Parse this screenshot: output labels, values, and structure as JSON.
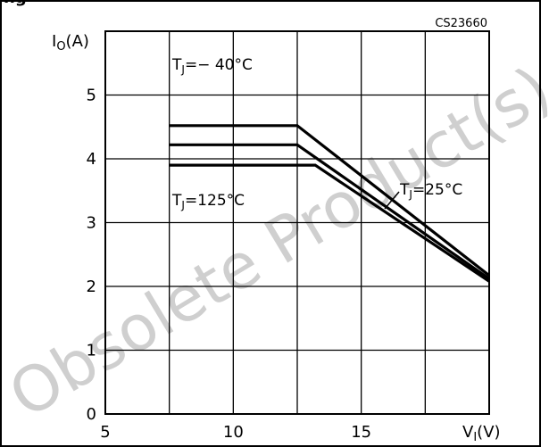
{
  "header_partial": "ng",
  "watermark": "Obsolete Product(s) - O",
  "chart_data": {
    "type": "line",
    "code": "CS23660",
    "ylabel": {
      "main": "I",
      "sub": "O",
      "unit": "(A)"
    },
    "xlabel": {
      "main": "V",
      "sub": "I",
      "unit": "(V)"
    },
    "xlim": [
      5,
      20
    ],
    "ylim": [
      0,
      6
    ],
    "xticks": [
      5,
      10,
      15
    ],
    "yticks": [
      0,
      1,
      2,
      3,
      4,
      5
    ],
    "grid": true,
    "series": [
      {
        "name": "T_J = -40°C",
        "x": [
          7.5,
          12.5,
          20
        ],
        "y": [
          4.52,
          4.52,
          2.17
        ]
      },
      {
        "name": "T_J = 25°C",
        "x": [
          7.5,
          12.5,
          20
        ],
        "y": [
          4.22,
          4.22,
          2.12
        ]
      },
      {
        "name": "T_J = 125°C",
        "x": [
          7.5,
          13.2,
          20
        ],
        "y": [
          3.9,
          3.9,
          2.08
        ]
      }
    ],
    "annotations": [
      {
        "series": 0,
        "pre": "T",
        "sub": "J",
        "post": "=− 40°C"
      },
      {
        "series": 1,
        "pre": "T",
        "sub": "J",
        "post": "=25°C"
      },
      {
        "series": 2,
        "pre": "T",
        "sub": "J",
        "post": "=125°C"
      }
    ]
  }
}
